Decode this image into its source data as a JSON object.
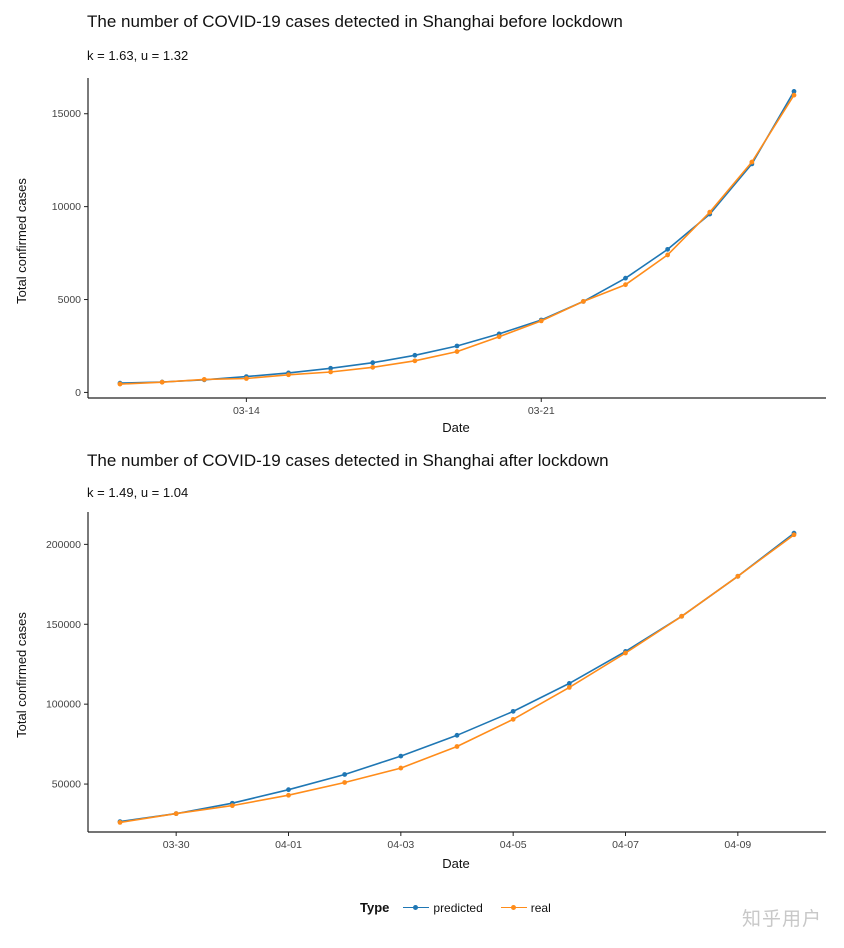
{
  "watermark": "知乎用户",
  "legend": {
    "title": "Type",
    "items": [
      {
        "label": "predicted",
        "color": "#1f77b4"
      },
      {
        "label": "real",
        "color": "#ff8c1a"
      }
    ]
  },
  "chart_data": [
    {
      "type": "line",
      "title": "The number of COVID-19 cases detected in Shanghai before lockdown",
      "subtitle": "k = 1.63, u = 1.32",
      "xlabel": "Date",
      "ylabel": "Total confirmed cases",
      "x_ticks": [
        "03-14",
        "03-21"
      ],
      "y_ticks": [
        0,
        5000,
        10000,
        15000
      ],
      "ylim": [
        -300,
        16600
      ],
      "x": [
        "03-11",
        "03-12",
        "03-13",
        "03-14",
        "03-15",
        "03-16",
        "03-17",
        "03-18",
        "03-19",
        "03-20",
        "03-21",
        "03-22",
        "03-23",
        "03-24",
        "03-25",
        "03-26",
        "03-27"
      ],
      "series": [
        {
          "name": "predicted",
          "color": "#1f77b4",
          "values": [
            500,
            560,
            680,
            850,
            1050,
            1300,
            1600,
            2000,
            2500,
            3150,
            3900,
            4900,
            6150,
            7700,
            9600,
            12300,
            16200
          ]
        },
        {
          "name": "real",
          "color": "#ff8c1a",
          "values": [
            450,
            550,
            700,
            750,
            950,
            1100,
            1350,
            1700,
            2200,
            3000,
            3850,
            4900,
            5800,
            7400,
            9700,
            12400,
            16000
          ]
        }
      ]
    },
    {
      "type": "line",
      "title": "The number of COVID-19 cases detected in Shanghai after lockdown",
      "subtitle": "k = 1.49, u = 1.04",
      "xlabel": "Date",
      "ylabel": "Total confirmed cases",
      "x_ticks": [
        "03-30",
        "04-01",
        "04-03",
        "04-05",
        "04-07",
        "04-09"
      ],
      "y_ticks": [
        50000,
        100000,
        150000,
        200000
      ],
      "ylim": [
        20000,
        216500
      ],
      "x": [
        "03-29",
        "03-30",
        "03-31",
        "04-01",
        "04-02",
        "04-03",
        "04-04",
        "04-05",
        "04-06",
        "04-07",
        "04-08",
        "04-09",
        "04-10"
      ],
      "series": [
        {
          "name": "predicted",
          "color": "#1f77b4",
          "values": [
            26500,
            31500,
            38000,
            46500,
            56000,
            67500,
            80500,
            95500,
            113000,
            133000,
            155000,
            180000,
            207000
          ]
        },
        {
          "name": "real",
          "color": "#ff8c1a",
          "values": [
            26000,
            31500,
            36500,
            43000,
            51000,
            60000,
            73500,
            90500,
            110500,
            132000,
            155000,
            180000,
            206000
          ]
        }
      ]
    }
  ]
}
